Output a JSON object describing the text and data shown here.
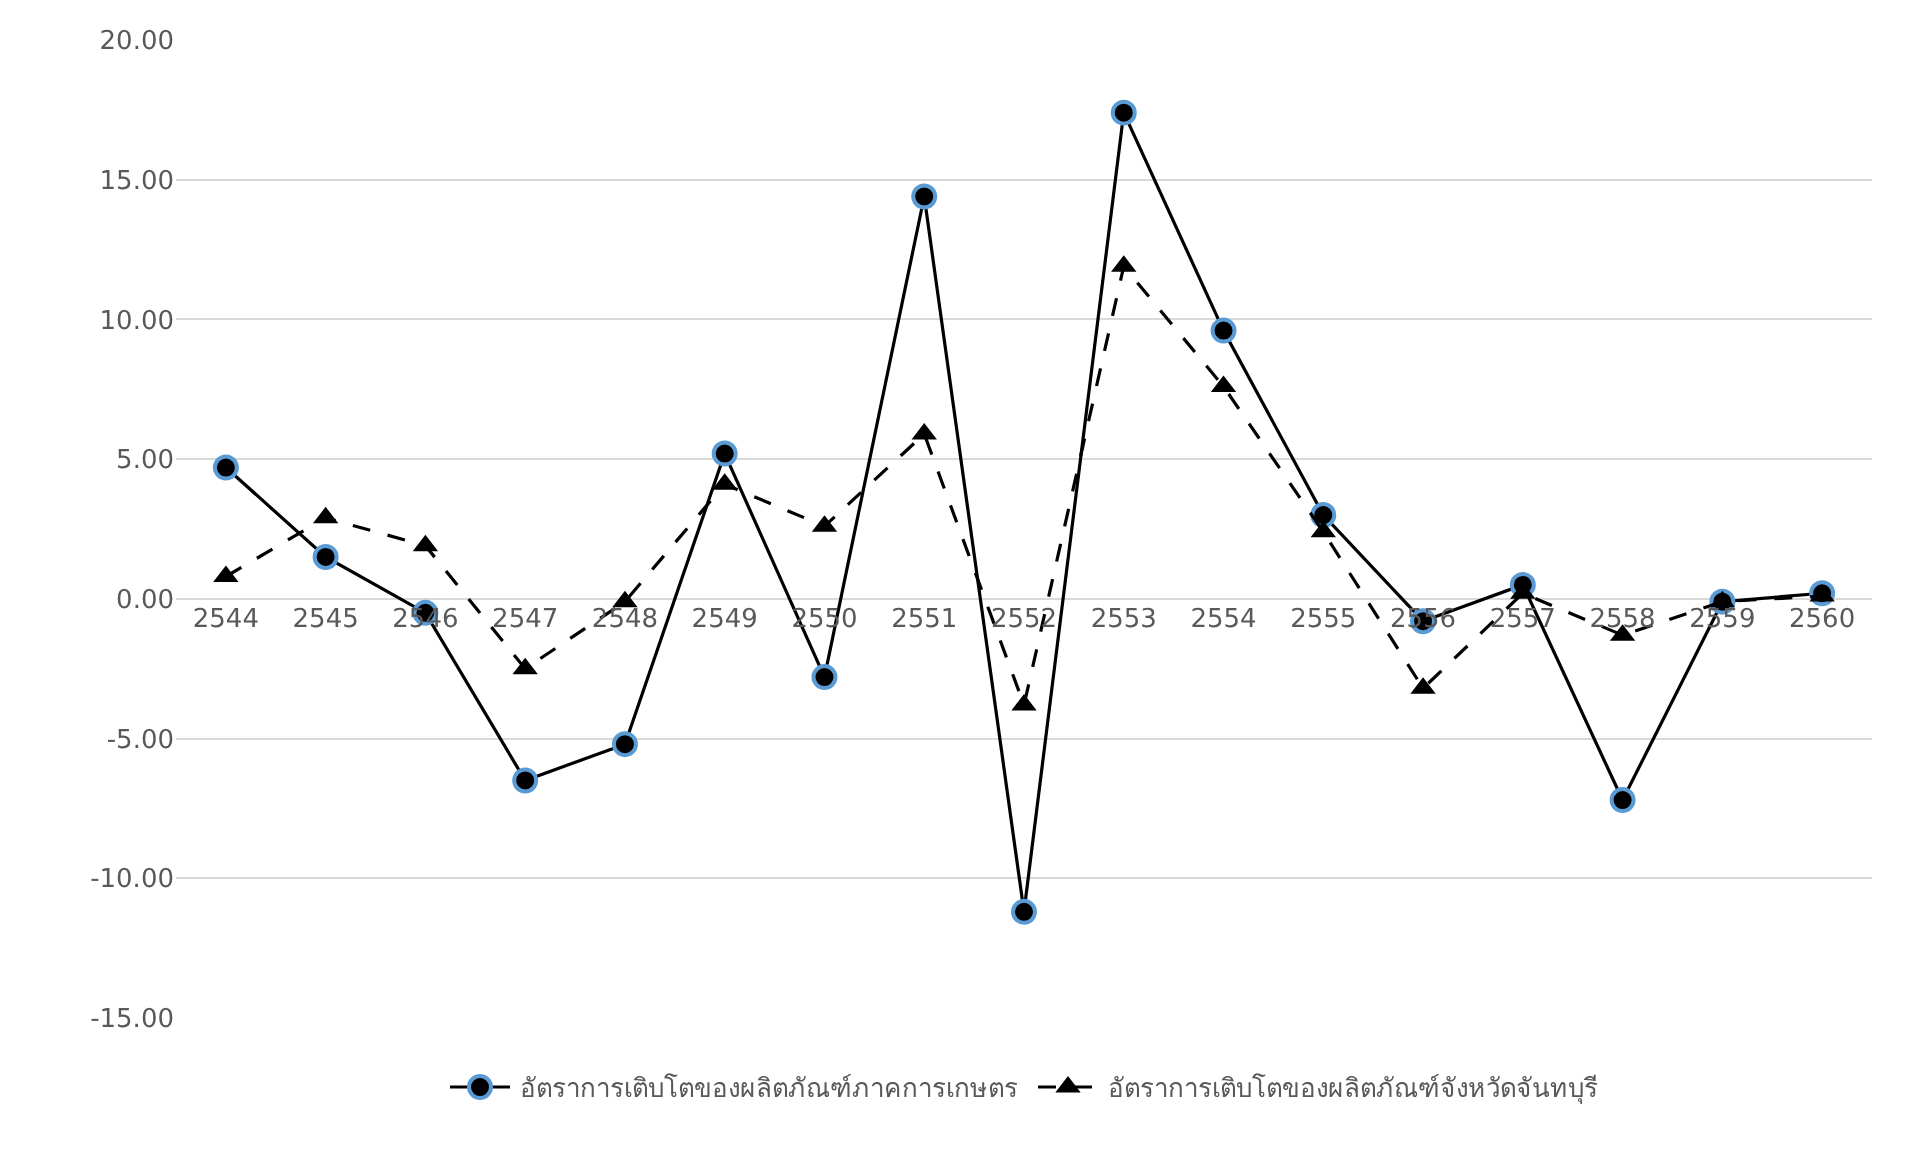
{
  "chart_data": {
    "type": "line",
    "categories": [
      "2544",
      "2545",
      "2546",
      "2547",
      "2548",
      "2549",
      "2550",
      "2551",
      "2552",
      "2553",
      "2554",
      "2555",
      "2556",
      "2557",
      "2558",
      "2559",
      "2560"
    ],
    "series": [
      {
        "name": "อัตราการเติบโตของผลิตภัณฑ์ภาคการเกษตร",
        "color": "#000000",
        "marker": "circle",
        "line_style": "solid",
        "values": [
          4.7,
          1.5,
          -0.5,
          -6.5,
          -5.2,
          5.2,
          -2.8,
          14.4,
          -11.2,
          17.4,
          9.6,
          3.0,
          -0.8,
          0.5,
          -7.2,
          -0.1,
          0.2
        ]
      },
      {
        "name": "อัตราการเติบโตของผลิตภัณฑ์จังหวัดจันทบุรี",
        "color": "#000000",
        "marker": "triangle",
        "line_style": "dashed",
        "values": [
          0.8,
          2.9,
          1.9,
          -2.5,
          -0.1,
          4.1,
          2.6,
          5.9,
          -3.8,
          11.9,
          7.6,
          2.4,
          -3.2,
          0.2,
          -1.3,
          -0.1,
          0.1
        ]
      }
    ],
    "ylim": [
      -15,
      20
    ],
    "yticks": [
      {
        "value": -15,
        "label": "-15.00"
      },
      {
        "value": -10,
        "label": "-10.00"
      },
      {
        "value": -5,
        "label": "-5.00"
      },
      {
        "value": 0,
        "label": "0.00"
      },
      {
        "value": 5,
        "label": "5.00"
      },
      {
        "value": 10,
        "label": "10.00"
      },
      {
        "value": 15,
        "label": "15.00"
      },
      {
        "value": 20,
        "label": "20.00"
      }
    ],
    "grid": "y",
    "legend": "bottom"
  }
}
